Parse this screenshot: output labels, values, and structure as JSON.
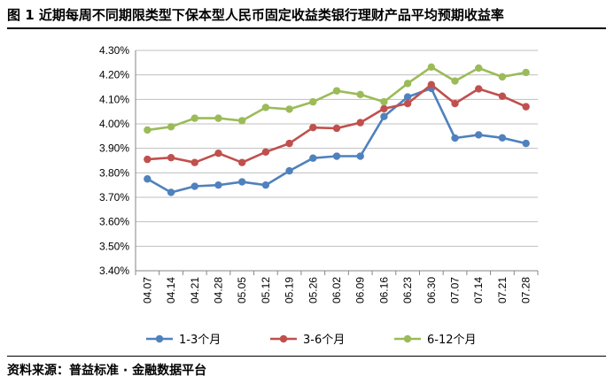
{
  "figure": {
    "title": "图 1 近期每周不同期限类型下保本型人民币固定收益类银行理财产品平均预期收益率",
    "source": "资料来源：普益标准 · 金融数据平台"
  },
  "chart_data": {
    "type": "line",
    "title": "",
    "xlabel": "",
    "ylabel": "",
    "categories": [
      "04.07",
      "04.14",
      "04.21",
      "04.28",
      "05.05",
      "05.12",
      "05.19",
      "05.26",
      "06.02",
      "06.09",
      "06.16",
      "06.23",
      "06.30",
      "07.07",
      "07.14",
      "07.21",
      "07.28"
    ],
    "ylim": [
      3.4,
      4.3
    ],
    "yticks": [
      "3.40%",
      "3.50%",
      "3.60%",
      "3.70%",
      "3.80%",
      "3.90%",
      "4.00%",
      "4.10%",
      "4.20%",
      "4.30%"
    ],
    "grid": "horizontal",
    "legend": "bottom",
    "series": [
      {
        "name": "1-3个月",
        "color": "#4f81bd",
        "values": [
          3.775,
          3.72,
          3.745,
          3.75,
          3.763,
          3.75,
          3.808,
          3.86,
          3.868,
          3.868,
          4.03,
          4.11,
          4.145,
          3.942,
          3.955,
          3.943,
          3.92
        ]
      },
      {
        "name": "3-6个月",
        "color": "#c0504d",
        "values": [
          3.855,
          3.862,
          3.842,
          3.88,
          3.842,
          3.885,
          3.92,
          3.985,
          3.982,
          4.005,
          4.062,
          4.083,
          4.16,
          4.083,
          4.143,
          4.113,
          4.07
        ]
      },
      {
        "name": "6-12个月",
        "color": "#9bbb59",
        "values": [
          3.975,
          3.988,
          4.023,
          4.023,
          4.013,
          4.067,
          4.06,
          4.09,
          4.135,
          4.12,
          4.09,
          4.165,
          4.232,
          4.175,
          4.228,
          4.192,
          4.21
        ]
      }
    ]
  }
}
